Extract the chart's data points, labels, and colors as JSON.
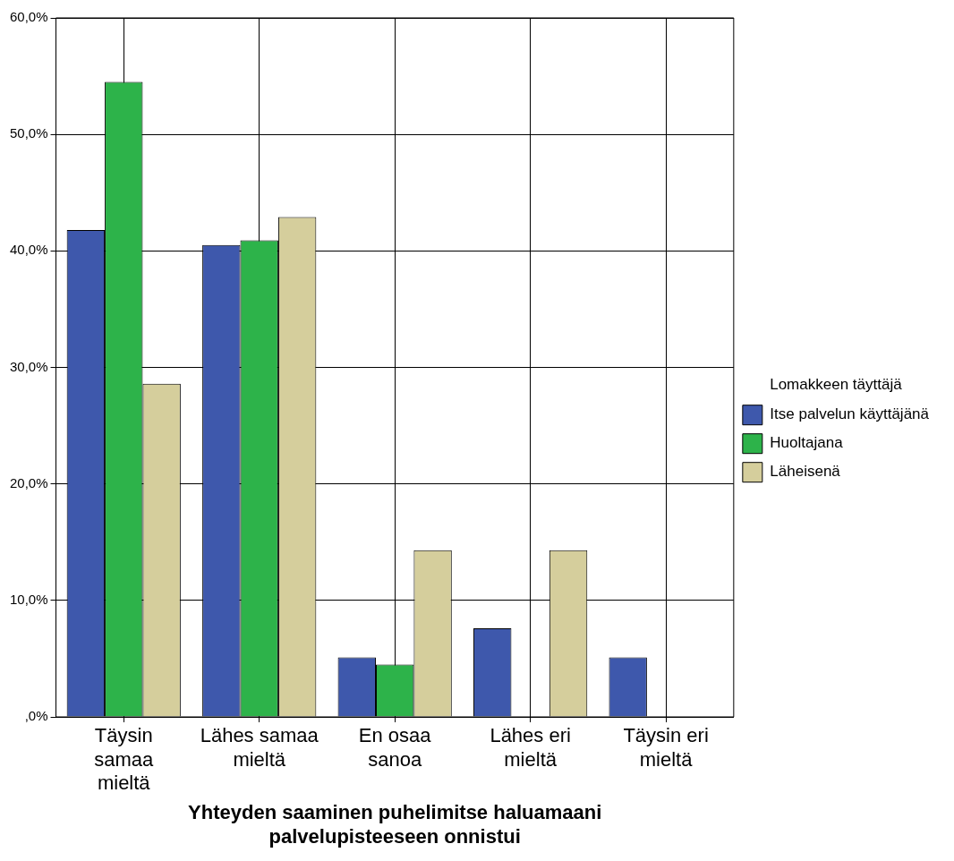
{
  "chart_data": {
    "type": "bar",
    "xlabel": "Yhteyden saaminen puhelimitse haluamaani palvelupisteeseen onnistui",
    "legend_title": "Lomakkeen täyttäjä",
    "categories": [
      "Täysin samaa mieltä",
      "Lähes samaa mieltä",
      "En osaa sanoa",
      "Lähes eri mieltä",
      "Täysin eri mieltä"
    ],
    "series": [
      {
        "name": "Itse palvelun käyttäjänä",
        "color": "#3e58ac",
        "values": [
          41.8,
          40.5,
          5.1,
          7.6,
          5.1
        ]
      },
      {
        "name": "Huoltajana",
        "color": "#2db34a",
        "values": [
          54.5,
          40.9,
          4.5,
          0,
          0
        ]
      },
      {
        "name": "Läheisenä",
        "color": "#d5ce9c",
        "values": [
          28.6,
          42.9,
          14.3,
          14.3,
          0
        ]
      }
    ],
    "ylim": [
      0,
      60
    ],
    "yticks": [
      {
        "value": 0,
        "label": ",0%"
      },
      {
        "value": 10,
        "label": "10,0%"
      },
      {
        "value": 20,
        "label": "20,0%"
      },
      {
        "value": 30,
        "label": "30,0%"
      },
      {
        "value": 40,
        "label": "40,0%"
      },
      {
        "value": 50,
        "label": "50,0%"
      },
      {
        "value": 60,
        "label": "60,0%"
      }
    ],
    "grid": true,
    "legend": "right"
  }
}
